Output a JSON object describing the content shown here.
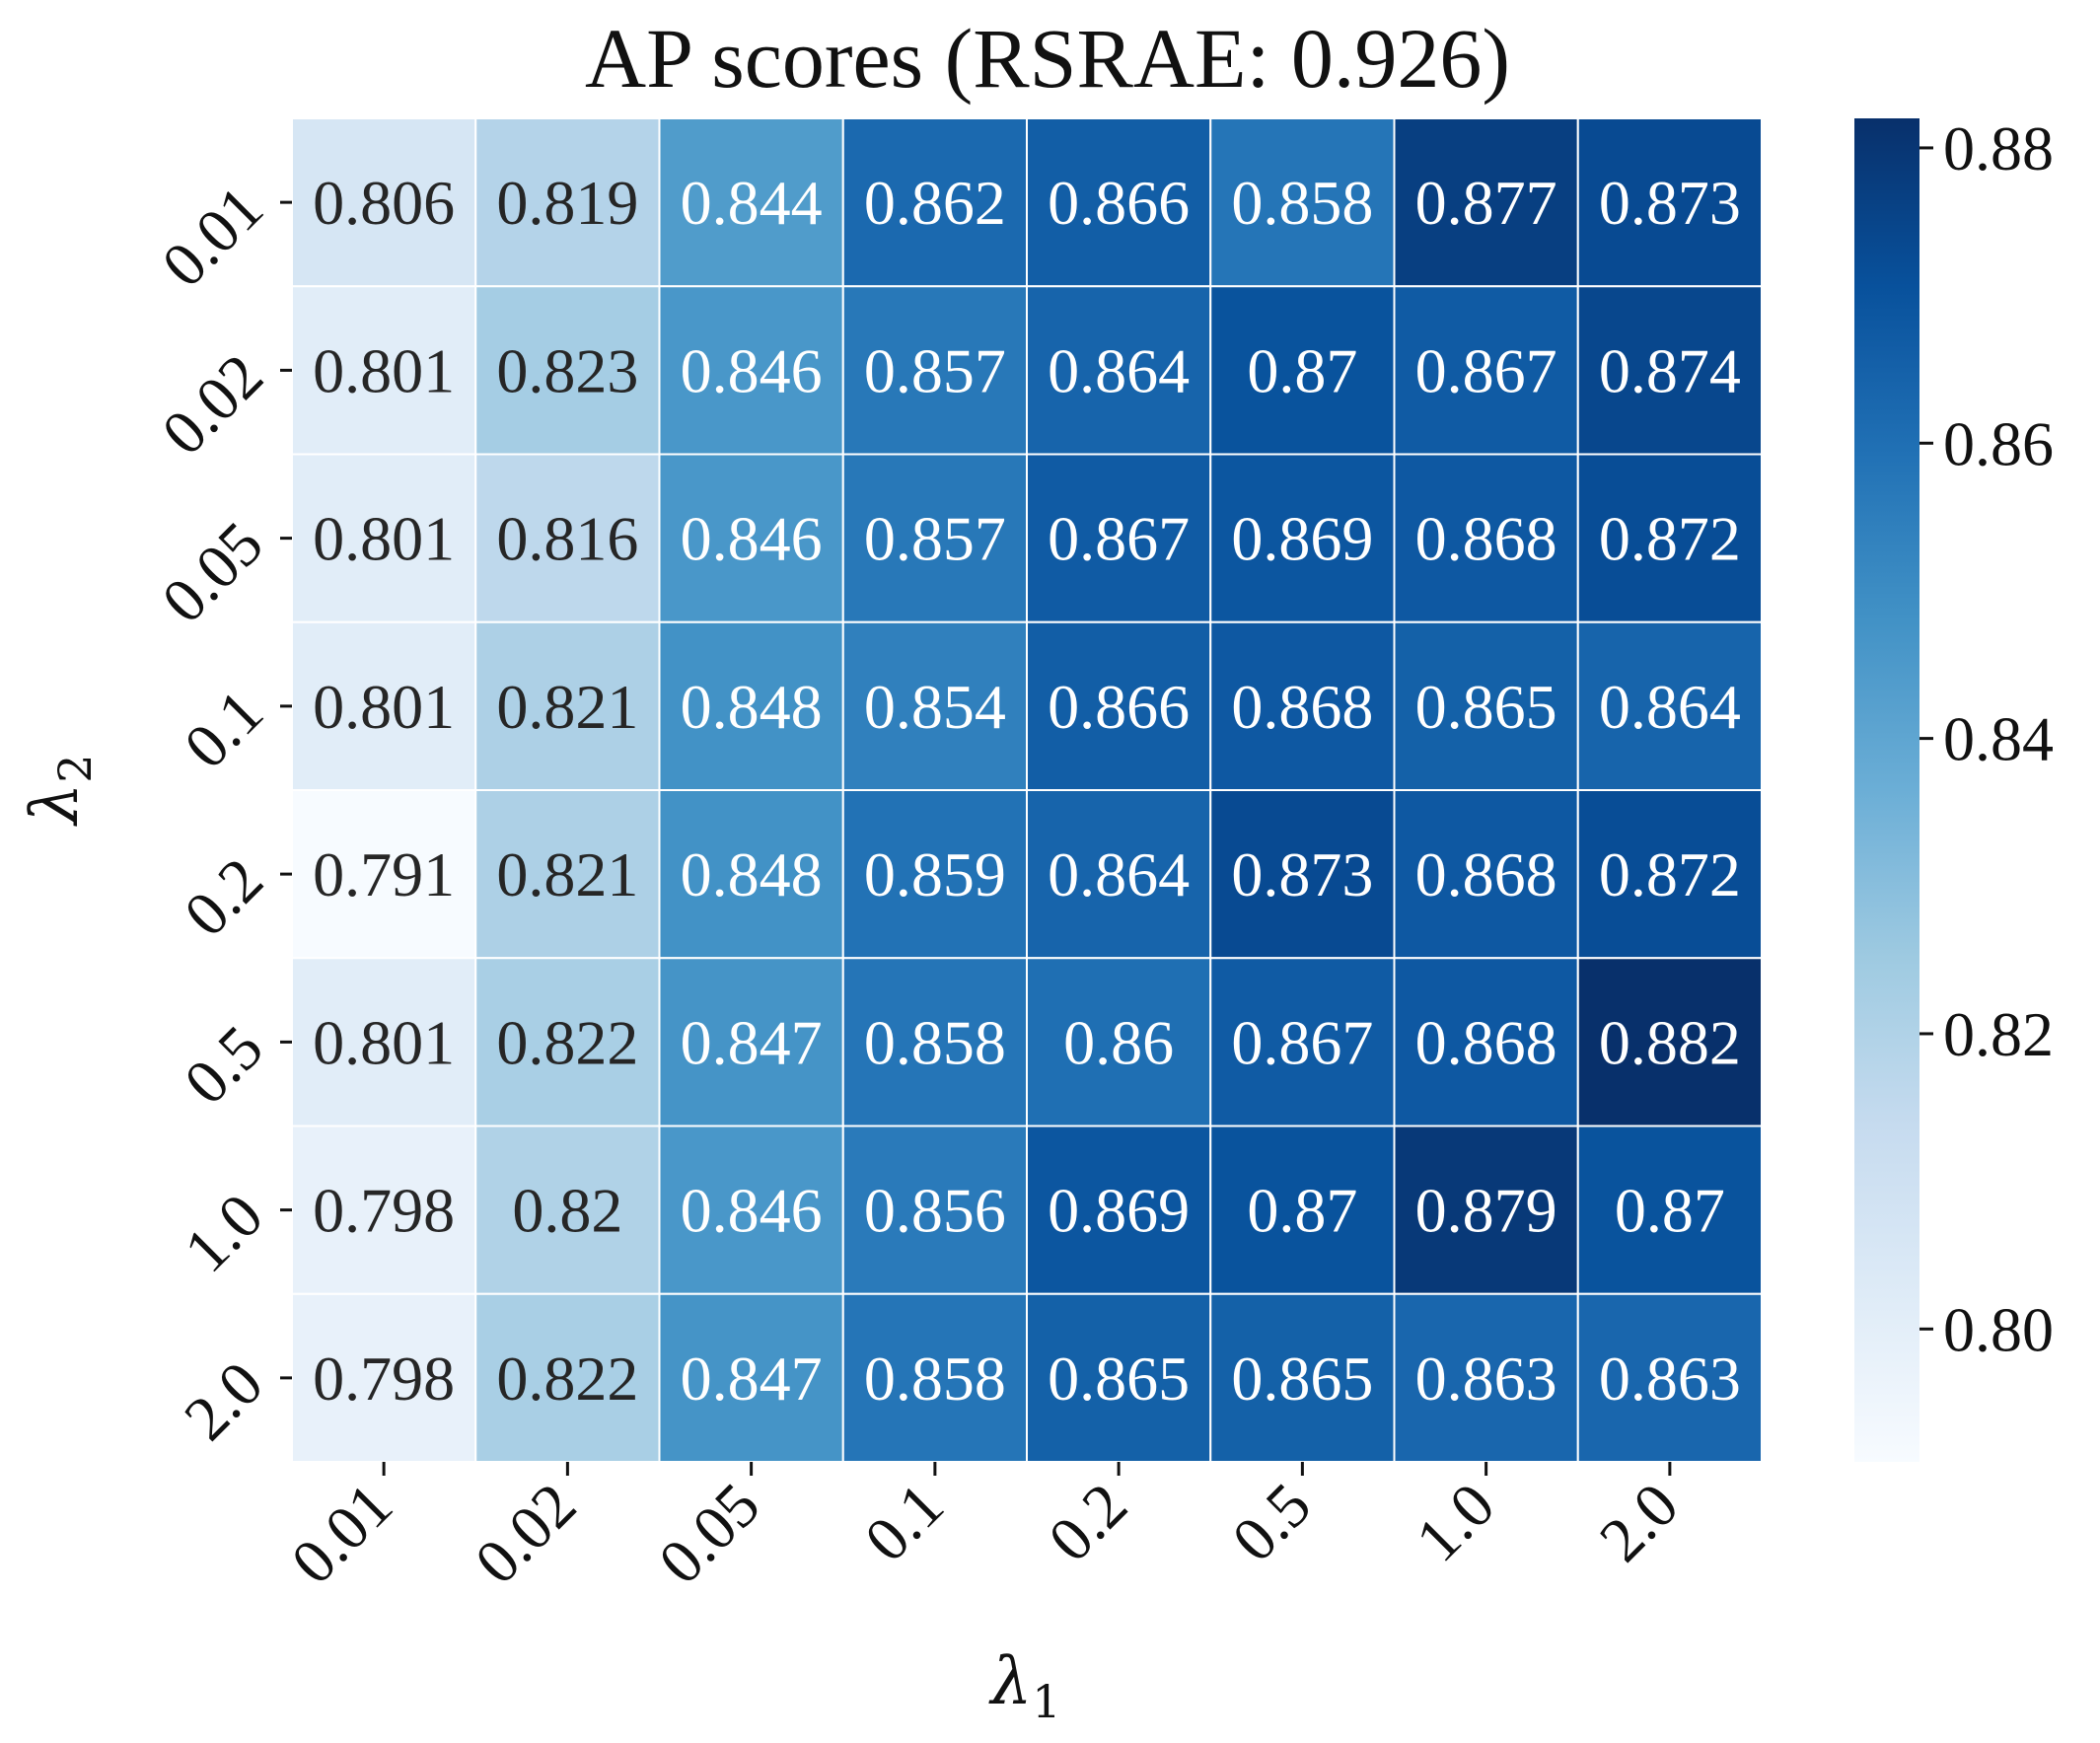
{
  "chart_data": {
    "type": "heatmap",
    "title": "AP scores (RSRAE: 0.926)",
    "xlabel": "λ",
    "xlabel_sub": "1",
    "ylabel": "λ",
    "ylabel_sub": "2",
    "x_categories": [
      "0.01",
      "0.02",
      "0.05",
      "0.1",
      "0.2",
      "0.5",
      "1.0",
      "2.0"
    ],
    "y_categories": [
      "0.01",
      "0.02",
      "0.05",
      "0.1",
      "0.2",
      "0.5",
      "1.0",
      "2.0"
    ],
    "values": [
      [
        0.806,
        0.819,
        0.844,
        0.862,
        0.866,
        0.858,
        0.877,
        0.873
      ],
      [
        0.801,
        0.823,
        0.846,
        0.857,
        0.864,
        0.87,
        0.867,
        0.874
      ],
      [
        0.801,
        0.816,
        0.846,
        0.857,
        0.867,
        0.869,
        0.868,
        0.872
      ],
      [
        0.801,
        0.821,
        0.848,
        0.854,
        0.866,
        0.868,
        0.865,
        0.864
      ],
      [
        0.791,
        0.821,
        0.848,
        0.859,
        0.864,
        0.873,
        0.868,
        0.872
      ],
      [
        0.801,
        0.822,
        0.847,
        0.858,
        0.86,
        0.867,
        0.868,
        0.882
      ],
      [
        0.798,
        0.82,
        0.846,
        0.856,
        0.869,
        0.87,
        0.879,
        0.87
      ],
      [
        0.798,
        0.822,
        0.847,
        0.858,
        0.865,
        0.865,
        0.863,
        0.863
      ]
    ],
    "colormap": "Blues",
    "vmin": 0.791,
    "vmax": 0.882,
    "colorbar_ticks": [
      "0.80",
      "0.82",
      "0.84",
      "0.86",
      "0.88"
    ],
    "grid": false,
    "legend": "colorbar-right"
  }
}
